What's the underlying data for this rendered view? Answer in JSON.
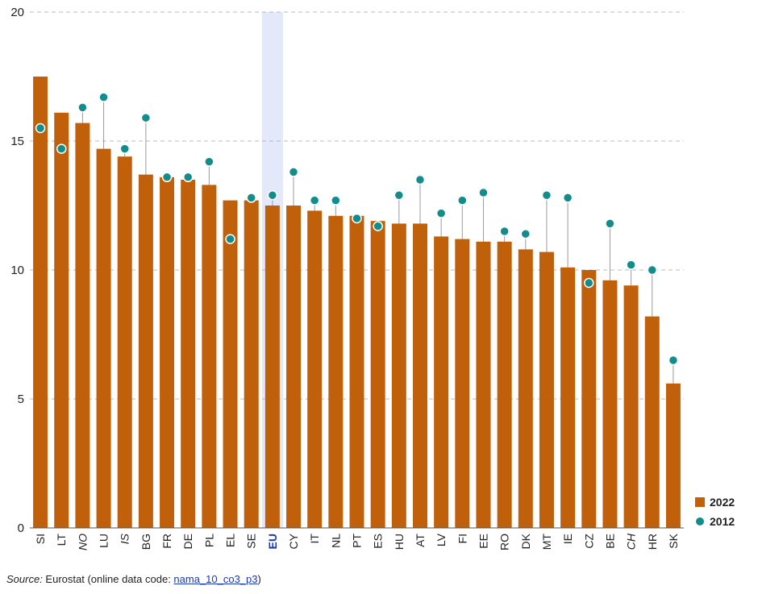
{
  "chart_data": {
    "type": "bar",
    "categories": [
      "SI",
      "LT",
      "NO",
      "LU",
      "IS",
      "BG",
      "FR",
      "DE",
      "PL",
      "EL",
      "SE",
      "EU",
      "CY",
      "IT",
      "NL",
      "PT",
      "ES",
      "HU",
      "AT",
      "LV",
      "FI",
      "EE",
      "RO",
      "DK",
      "MT",
      "IE",
      "CZ",
      "BE",
      "CH",
      "HR",
      "SK"
    ],
    "italic_categories": [
      "NO",
      "IS",
      "CH"
    ],
    "highlight_category": "EU",
    "series": [
      {
        "name": "2022",
        "kind": "bar",
        "color": "#c0600a",
        "values": [
          17.5,
          16.1,
          15.7,
          14.7,
          14.4,
          13.7,
          13.6,
          13.5,
          13.3,
          12.7,
          12.7,
          12.5,
          12.5,
          12.3,
          12.1,
          12.1,
          11.9,
          11.8,
          11.8,
          11.3,
          11.2,
          11.1,
          11.1,
          10.8,
          10.7,
          10.1,
          10.0,
          9.6,
          9.4,
          8.2,
          5.6
        ]
      },
      {
        "name": "2012",
        "kind": "marker",
        "color": "#138c8c",
        "values": [
          15.5,
          14.7,
          16.3,
          16.7,
          14.7,
          15.9,
          13.6,
          13.6,
          14.2,
          11.2,
          12.8,
          12.9,
          13.8,
          12.7,
          12.7,
          12.0,
          11.7,
          12.9,
          13.5,
          12.2,
          12.7,
          13.0,
          11.5,
          11.4,
          12.9,
          12.8,
          9.5,
          11.8,
          10.2,
          10.0,
          6.5
        ]
      }
    ],
    "ylim": [
      0,
      20
    ],
    "yticks": [
      0,
      5,
      10,
      15,
      20
    ],
    "grid": "horizontal dashed",
    "legend_position": "bottom-right"
  },
  "legend": {
    "label_2022": "2022",
    "label_2012": "2012"
  },
  "source": {
    "prefix": "Source:",
    "text": " Eurostat (online data code: ",
    "code": "nama_10_co3_p3",
    "suffix": ")"
  }
}
